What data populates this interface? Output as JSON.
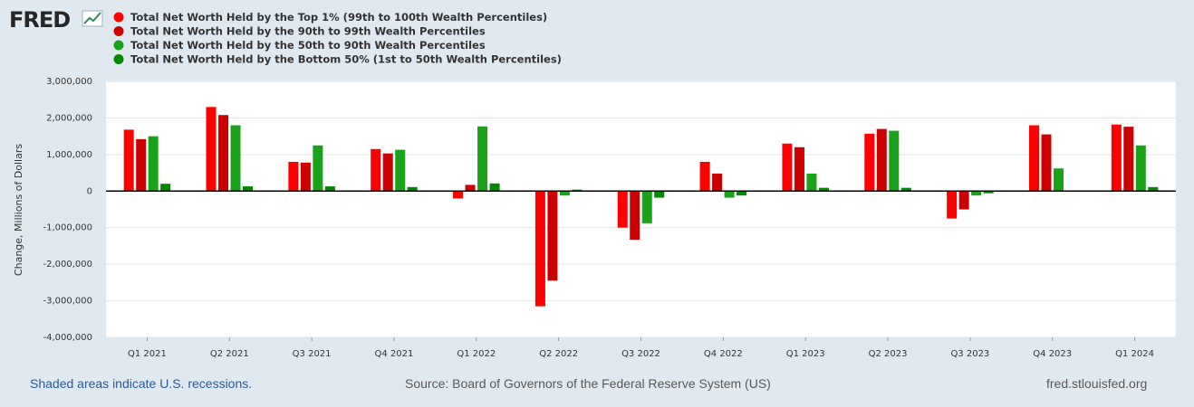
{
  "brand": {
    "logo_text": "FRED"
  },
  "footer": {
    "recession_note": "Shaded areas indicate U.S. recessions.",
    "source": "Source: Board of Governors of the Federal Reserve System (US)",
    "site": "fred.stlouisfed.org"
  },
  "colors": {
    "background": "#e1e9f0",
    "plot": "#ffffff",
    "grid": "#e6e6e6",
    "zero_line": "#000000"
  },
  "chart_data": {
    "type": "bar",
    "title": "",
    "xlabel": "",
    "ylabel": "Change, Millions of Dollars",
    "ylim": [
      -4000000,
      3000000
    ],
    "yticks": [
      {
        "value": 3000000,
        "label": "3,000,000"
      },
      {
        "value": 2000000,
        "label": "2,000,000"
      },
      {
        "value": 1000000,
        "label": "1,000,000"
      },
      {
        "value": 0,
        "label": "0"
      },
      {
        "value": -1000000,
        "label": "-1,000,000"
      },
      {
        "value": -2000000,
        "label": "-2,000,000"
      },
      {
        "value": -3000000,
        "label": "-3,000,000"
      },
      {
        "value": -4000000,
        "label": "-4,000,000"
      }
    ],
    "categories": [
      "Q1 2021",
      "Q2 2021",
      "Q3 2021",
      "Q4 2021",
      "Q1 2022",
      "Q2 2022",
      "Q3 2022",
      "Q4 2022",
      "Q1 2023",
      "Q2 2023",
      "Q3 2023",
      "Q4 2023",
      "Q1 2024"
    ],
    "legend_position": "top-left",
    "series": [
      {
        "name": "Total Net Worth Held by the Top 1% (99th to 100th Wealth Percentiles)",
        "color": "#ff0000",
        "values": [
          1680000,
          2300000,
          800000,
          1150000,
          -200000,
          -3150000,
          -1000000,
          800000,
          1300000,
          1570000,
          -750000,
          1800000,
          1820000
        ]
      },
      {
        "name": "Total Net Worth Held by the 90th to 99th Wealth Percentiles",
        "color": "#cc0000",
        "values": [
          1420000,
          2080000,
          780000,
          1030000,
          170000,
          -2450000,
          -1330000,
          480000,
          1200000,
          1700000,
          -500000,
          1550000,
          1760000
        ]
      },
      {
        "name": "Total Net Worth Held by the 50th to 90th Wealth Percentiles",
        "color": "#1aa31a",
        "values": [
          1500000,
          1800000,
          1250000,
          1130000,
          1770000,
          -120000,
          -880000,
          -180000,
          480000,
          1650000,
          -120000,
          620000,
          1250000
        ]
      },
      {
        "name": "Total Net Worth Held by the Bottom 50% (1st to 50th Wealth Percentiles)",
        "color": "#008a00",
        "values": [
          200000,
          130000,
          130000,
          110000,
          210000,
          40000,
          -180000,
          -120000,
          90000,
          90000,
          -60000,
          0,
          110000
        ]
      }
    ]
  }
}
